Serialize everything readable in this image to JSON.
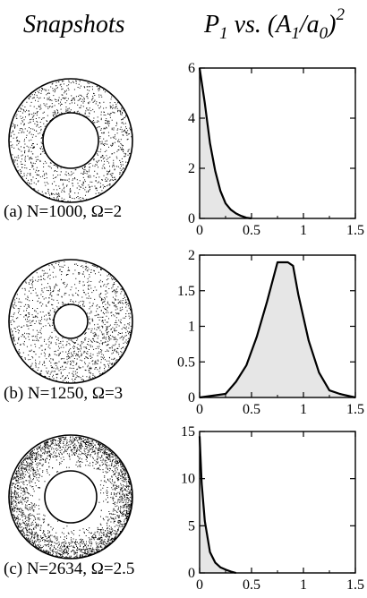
{
  "header": {
    "left_title": "Snapshots",
    "right_title_parts": {
      "p": "P",
      "p_sub": "1",
      "mid": " vs. (A",
      "a_sub": "1",
      "slash": "/a",
      "a0_sub": "0",
      "close": ")",
      "sup": "2"
    }
  },
  "colors": {
    "fill": "#e6e6e6",
    "line": "#000000",
    "dot": "#000000",
    "background": "#ffffff"
  },
  "panels": [
    {
      "caption": "(a) N=1000, Ω=2",
      "ring": "uniform, inner radius ~0.46"
    },
    {
      "caption": "(b) N=1250, Ω=3",
      "ring": "uniform with denser lower-right, inner radius ~0.30"
    },
    {
      "caption": "(c) N=2634, Ω=2.5",
      "ring": "dense outer rim, inner radius ~0.42"
    }
  ],
  "chart_data": [
    {
      "type": "area",
      "xlim": [
        0,
        1.5
      ],
      "ylim": [
        0,
        6
      ],
      "x_ticks": [
        "0",
        "0.5",
        "1",
        "1.5"
      ],
      "y_ticks": [
        "0",
        "2",
        "4",
        "6"
      ],
      "series": [
        {
          "x": [
            0,
            0.05,
            0.1,
            0.15,
            0.2,
            0.25,
            0.3,
            0.35,
            0.4,
            0.45,
            0.5
          ],
          "y": [
            6,
            4.6,
            3.0,
            1.9,
            1.1,
            0.6,
            0.35,
            0.2,
            0.1,
            0.03,
            0
          ]
        }
      ]
    },
    {
      "type": "area",
      "xlim": [
        0,
        1.5
      ],
      "ylim": [
        0,
        2
      ],
      "x_ticks": [
        "0",
        "0.5",
        "1",
        "1.5"
      ],
      "y_ticks": [
        "0",
        "0.5",
        "1",
        "1.5",
        "2"
      ],
      "series": [
        {
          "x": [
            0,
            0.25,
            0.35,
            0.45,
            0.55,
            0.65,
            0.75,
            0.85,
            0.9,
            0.95,
            1.05,
            1.15,
            1.25,
            1.35,
            1.5
          ],
          "y": [
            0,
            0.05,
            0.22,
            0.45,
            0.85,
            1.35,
            1.9,
            1.9,
            1.85,
            1.45,
            0.8,
            0.35,
            0.1,
            0.05,
            0
          ]
        }
      ]
    },
    {
      "type": "area",
      "xlim": [
        0,
        1.5
      ],
      "ylim": [
        0,
        15
      ],
      "x_ticks": [
        "0",
        "0.5",
        "1",
        "1.5"
      ],
      "y_ticks": [
        "0",
        "5",
        "10",
        "15"
      ],
      "series": [
        {
          "x": [
            0,
            0.02,
            0.05,
            0.1,
            0.15,
            0.2,
            0.25,
            0.3,
            0.35
          ],
          "y": [
            14.5,
            9.5,
            5.5,
            2.2,
            1.1,
            0.6,
            0.35,
            0.15,
            0
          ]
        }
      ]
    }
  ]
}
